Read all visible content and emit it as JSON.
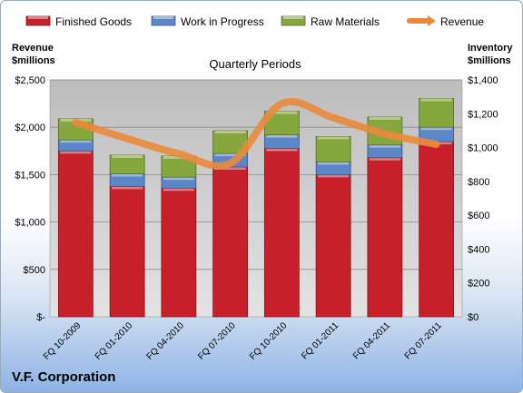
{
  "company": "V.F. Corporation",
  "chart_data": {
    "type": "bar",
    "stacked": true,
    "title": "Quarterly Periods",
    "ylabel_left": [
      "Revenue",
      "$millions"
    ],
    "ylabel_right": [
      "Inventory",
      "$millions"
    ],
    "categories": [
      "FQ 10-2009",
      "FQ 01-2010",
      "FQ 04-2010",
      "FQ 07-2010",
      "FQ 10-2010",
      "FQ 01-2011",
      "FQ 04-2011",
      "FQ 07-2011"
    ],
    "ylim_left": [
      0,
      2500
    ],
    "ylim_right": [
      0,
      1400
    ],
    "yticks_left": [
      "$-",
      "$500",
      "$1,000",
      "$1,500",
      "$2,000",
      "$2,500"
    ],
    "yticks_right": [
      "$0",
      "$200",
      "$400",
      "$600",
      "$800",
      "$1,000",
      "$1,200",
      "$1,400"
    ],
    "grid": true,
    "legend_position": "top",
    "series": [
      {
        "name": "Finished Goods",
        "axis": "right",
        "color": "#c8202a",
        "values": [
          980,
          770,
          760,
          885,
          995,
          840,
          940,
          1035
        ]
      },
      {
        "name": "Work in Progress",
        "axis": "right",
        "color": "#5b86c8",
        "values": [
          65,
          75,
          65,
          80,
          80,
          75,
          75,
          85
        ]
      },
      {
        "name": "Raw Materials",
        "axis": "right",
        "color": "#86a63e",
        "values": [
          125,
          110,
          125,
          135,
          140,
          150,
          165,
          170
        ]
      },
      {
        "name": "Revenue",
        "axis": "left",
        "type": "line",
        "color": "#ea8a3c",
        "values": [
          2050,
          1880,
          1720,
          1620,
          2250,
          2100,
          1930,
          1820
        ]
      }
    ]
  }
}
